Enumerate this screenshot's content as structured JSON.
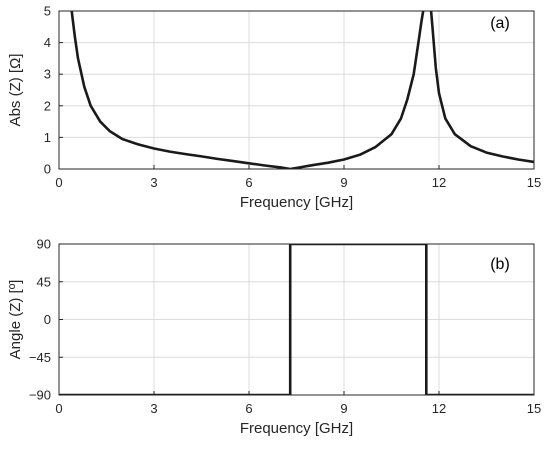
{
  "chart_data": [
    {
      "type": "line",
      "panel_label": "(a)",
      "xlabel": "Frequency [GHz]",
      "ylabel": "Abs (Z) [Ω]",
      "xlim": [
        0,
        15
      ],
      "ylim": [
        0,
        5
      ],
      "xticks": [
        "0",
        "3",
        "6",
        "9",
        "12",
        "15"
      ],
      "yticks": [
        "0",
        "1",
        "2",
        "3",
        "4",
        "5"
      ],
      "grid": true,
      "color": "#1a1a1a",
      "series": [
        {
          "x": [
            0.4,
            0.5,
            0.6,
            0.8,
            1.0,
            1.3,
            1.6,
            2.0,
            2.5,
            3.0,
            3.5,
            4.0,
            4.5,
            5.0,
            5.5,
            6.0,
            6.5,
            7.0,
            7.3,
            7.6,
            8.0,
            8.5,
            9.0,
            9.5,
            10.0,
            10.5,
            10.8,
            11.0,
            11.2,
            11.35,
            11.45,
            11.5
          ],
          "y": [
            5.0,
            4.2,
            3.5,
            2.6,
            2.0,
            1.5,
            1.2,
            0.95,
            0.78,
            0.65,
            0.55,
            0.47,
            0.4,
            0.32,
            0.25,
            0.18,
            0.11,
            0.05,
            0.0,
            0.05,
            0.12,
            0.2,
            0.3,
            0.45,
            0.7,
            1.1,
            1.6,
            2.2,
            3.0,
            4.0,
            4.7,
            5.0
          ]
        },
        {
          "x": [
            11.75,
            11.8,
            11.9,
            12.0,
            12.2,
            12.5,
            13.0,
            13.5,
            14.0,
            14.5,
            15.0
          ],
          "y": [
            5.0,
            4.4,
            3.2,
            2.4,
            1.6,
            1.1,
            0.72,
            0.52,
            0.4,
            0.3,
            0.22
          ]
        }
      ]
    },
    {
      "type": "line",
      "panel_label": "(b)",
      "xlabel": "Frequency [GHz]",
      "ylabel": "Angle (Z) [º]",
      "xlim": [
        0,
        15
      ],
      "ylim": [
        -90,
        90
      ],
      "xticks": [
        "0",
        "3",
        "6",
        "9",
        "12",
        "15"
      ],
      "yticks": [
        "90",
        "45",
        "0",
        "−45",
        "−90"
      ],
      "grid": true,
      "color": "#1a1a1a",
      "series": [
        {
          "x": [
            0,
            7.3,
            7.3,
            11.6,
            11.6,
            15
          ],
          "y": [
            -90,
            -90,
            90,
            90,
            -90,
            -90
          ]
        }
      ]
    }
  ]
}
